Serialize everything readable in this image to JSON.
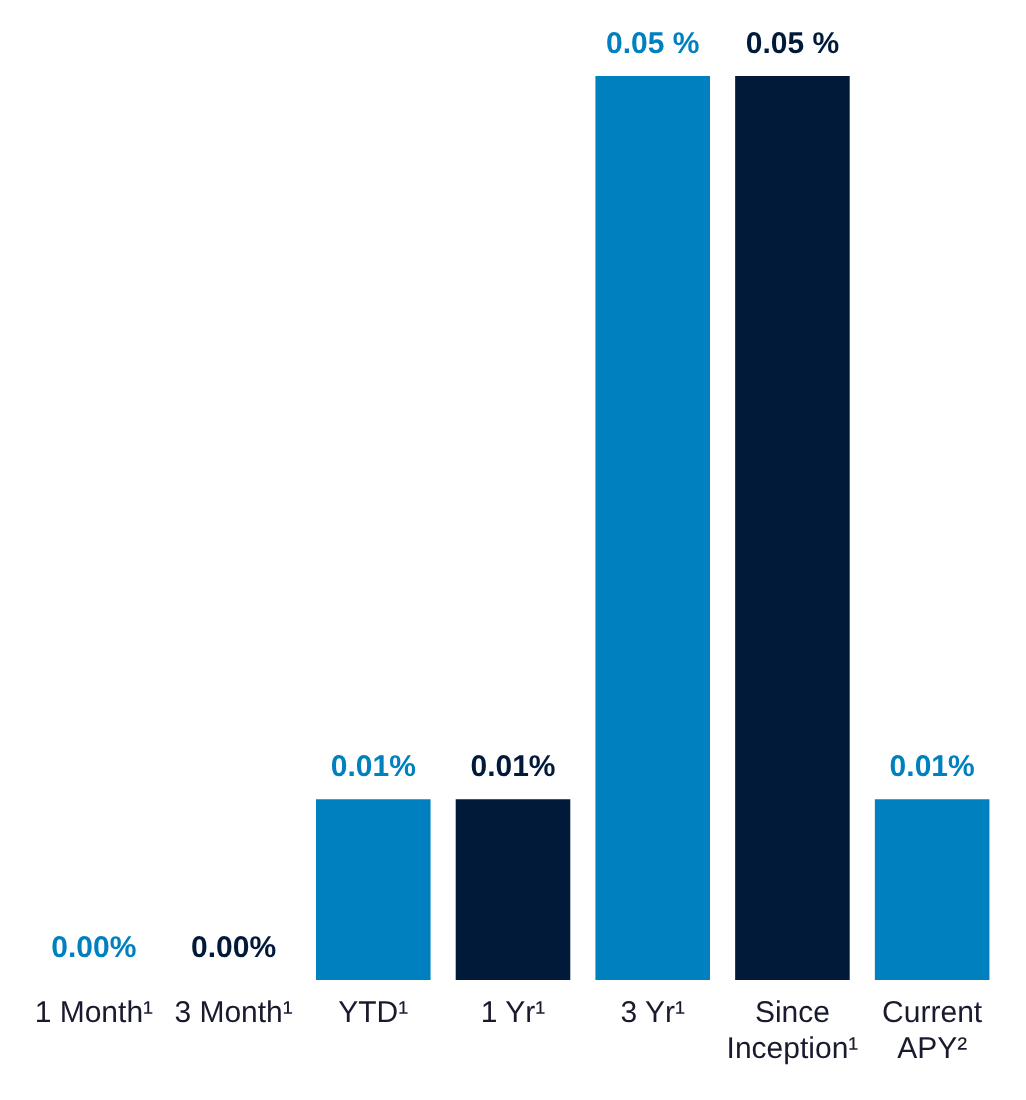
{
  "chart_data": {
    "type": "bar",
    "categories": [
      "1 Month¹",
      "3 Month¹",
      "YTD¹",
      "1 Yr¹",
      "3 Yr¹",
      "Since Inception¹",
      "Current APY²"
    ],
    "values": [
      0.0,
      0.0,
      0.01,
      0.01,
      0.05,
      0.05,
      0.01
    ],
    "colors": [
      "#0080bf",
      "#021a3a",
      "#0080bf",
      "#021a3a",
      "#0080bf",
      "#021a3a",
      "#0080bf"
    ],
    "value_labels": [
      "0.00%",
      "0.00%",
      "0.01%",
      "0.01%",
      "0.05 %",
      "0.05 %",
      "0.01%"
    ],
    "ylim": [
      0,
      0.05
    ],
    "grid": false,
    "legend": false
  }
}
